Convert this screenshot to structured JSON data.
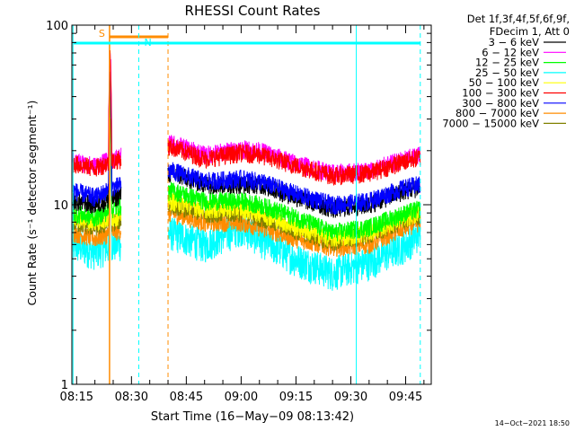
{
  "chart_data": {
    "type": "line",
    "title": "RHESSI Count Rates",
    "xlabel": "Start Time (16−May−09 08:13:42)",
    "ylabel": "Count Rate (s⁻¹ detector segment⁻¹)",
    "yscale": "log",
    "ylim": [
      1,
      100
    ],
    "xlim": [
      "08:13:42",
      "09:52:00"
    ],
    "x_ticks": [
      "08:15",
      "08:30",
      "08:45",
      "09:00",
      "09:15",
      "09:30",
      "09:45"
    ],
    "y_ticks": [
      "1",
      "10",
      "100"
    ],
    "legend_header": [
      "Det 1f,3f,4f,5f,6f,9f,",
      "FDecim 1, Att 0"
    ],
    "legend_placement": "right",
    "timestamp": "14−Oct−2021 18:50",
    "data_gap": [
      "08:27:10",
      "08:40:00"
    ],
    "x": [
      "08:14",
      "08:20",
      "08:25",
      "08:41",
      "08:50",
      "09:00",
      "09:05",
      "09:15",
      "09:25",
      "09:35",
      "09:45",
      "09:49"
    ],
    "series": [
      {
        "name": "3 − 6 keV",
        "color": "#000000",
        "values": [
          10.5,
          10.0,
          10.8,
          15.0,
          13.0,
          13.0,
          13.0,
          11.0,
          9.5,
          10.0,
          12.0,
          12.5
        ]
      },
      {
        "name": "6 − 12 keV",
        "color": "#ff00ff",
        "values": [
          17.5,
          16.5,
          18.0,
          22.0,
          19.0,
          20.5,
          20.0,
          17.0,
          15.0,
          15.5,
          18.0,
          19.0
        ]
      },
      {
        "name": "12 − 25 keV",
        "color": "#00ff00",
        "values": [
          9.0,
          8.5,
          9.5,
          12.0,
          10.5,
          10.5,
          10.0,
          8.5,
          7.0,
          7.5,
          9.0,
          9.5
        ]
      },
      {
        "name": "25 − 50 keV",
        "color": "#00ffff",
        "values": [
          6.0,
          5.5,
          6.0,
          7.0,
          6.0,
          7.5,
          6.5,
          5.0,
          4.2,
          4.8,
          6.0,
          7.0
        ]
      },
      {
        "name": "50 − 100 keV",
        "color": "#ffff00",
        "values": [
          8.5,
          8.0,
          8.5,
          10.5,
          9.5,
          9.5,
          9.0,
          7.5,
          6.5,
          7.0,
          8.5,
          9.0
        ]
      },
      {
        "name": "100 − 300 keV",
        "color": "#ff0000",
        "values": [
          17.0,
          16.0,
          17.5,
          21.0,
          18.0,
          19.5,
          19.0,
          16.5,
          14.5,
          15.0,
          17.5,
          18.5
        ]
      },
      {
        "name": "300 − 800 keV",
        "color": "#0000ff",
        "values": [
          12.0,
          11.0,
          12.5,
          15.5,
          13.5,
          14.0,
          13.5,
          11.5,
          10.0,
          10.5,
          12.5,
          13.0
        ]
      },
      {
        "name": "800 − 7000 keV",
        "color": "#ff8c00",
        "values": [
          7.0,
          6.5,
          7.0,
          9.0,
          8.0,
          8.0,
          7.5,
          6.5,
          5.8,
          6.0,
          7.5,
          8.0
        ]
      },
      {
        "name": "7000 − 15000 keV",
        "color": "#808000",
        "values": [
          8.0,
          7.5,
          8.0,
          10.0,
          9.0,
          9.0,
          8.5,
          7.2,
          6.2,
          6.8,
          8.2,
          8.8
        ]
      }
    ],
    "annotations": [
      {
        "label": "S",
        "color": "#ff8c00",
        "start": "08:24:00",
        "end": "08:40:00",
        "style": "solid-start dashed-end"
      },
      {
        "label": "N",
        "color": "#00ffff",
        "start": "08:14:00",
        "end": "08:32:00",
        "style": "dashed-end"
      },
      {
        "label": "",
        "color": "#00ffff",
        "start": "09:31:30",
        "end": "09:49:00",
        "style": "dashed-end"
      }
    ]
  }
}
